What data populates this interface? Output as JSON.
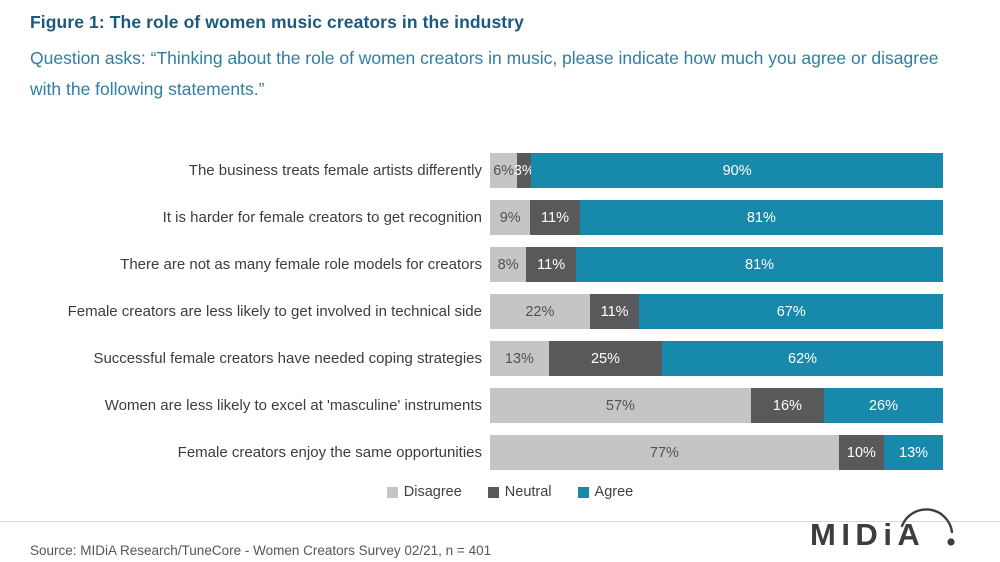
{
  "header": {
    "title": "Figure 1: The role of women music creators in the industry",
    "subtitle": "Question asks: “Thinking about the role of women creators in music, please indicate how much you agree or disagree with the following statements.”"
  },
  "chart_data": {
    "type": "bar",
    "orientation": "horizontal",
    "stacked": true,
    "value_suffix": "%",
    "legend_position": "bottom",
    "categories": [
      "The business treats female artists differently",
      "It is harder for female creators to get recognition",
      "There are not as many female role models for creators",
      "Female creators are less likely to get involved in technical side",
      "Successful female creators have needed coping strategies",
      "Women are less likely to excel at 'masculine' instruments",
      "Female creators enjoy the same opportunities"
    ],
    "series": [
      {
        "name": "Disagree",
        "color": "#c4c5c7",
        "values": [
          6,
          9,
          8,
          22,
          13,
          57,
          77
        ]
      },
      {
        "name": "Neutral",
        "color": "#58595a",
        "values": [
          3,
          11,
          11,
          11,
          25,
          16,
          10
        ]
      },
      {
        "name": "Agree",
        "color": "#1789ab",
        "values": [
          90,
          81,
          81,
          67,
          62,
          26,
          13
        ]
      }
    ]
  },
  "footer": {
    "source": "Source: MIDiA Research/TuneCore - Women Creators Survey 02/21, n = 401",
    "logo_text": "MIDiA"
  },
  "colors": {
    "title": "#1b5a7d",
    "subtitle": "#2e7fa3",
    "disagree": "#c4c5c7",
    "neutral": "#58595a",
    "agree": "#1789ab",
    "logo": "#3d3d3f"
  }
}
